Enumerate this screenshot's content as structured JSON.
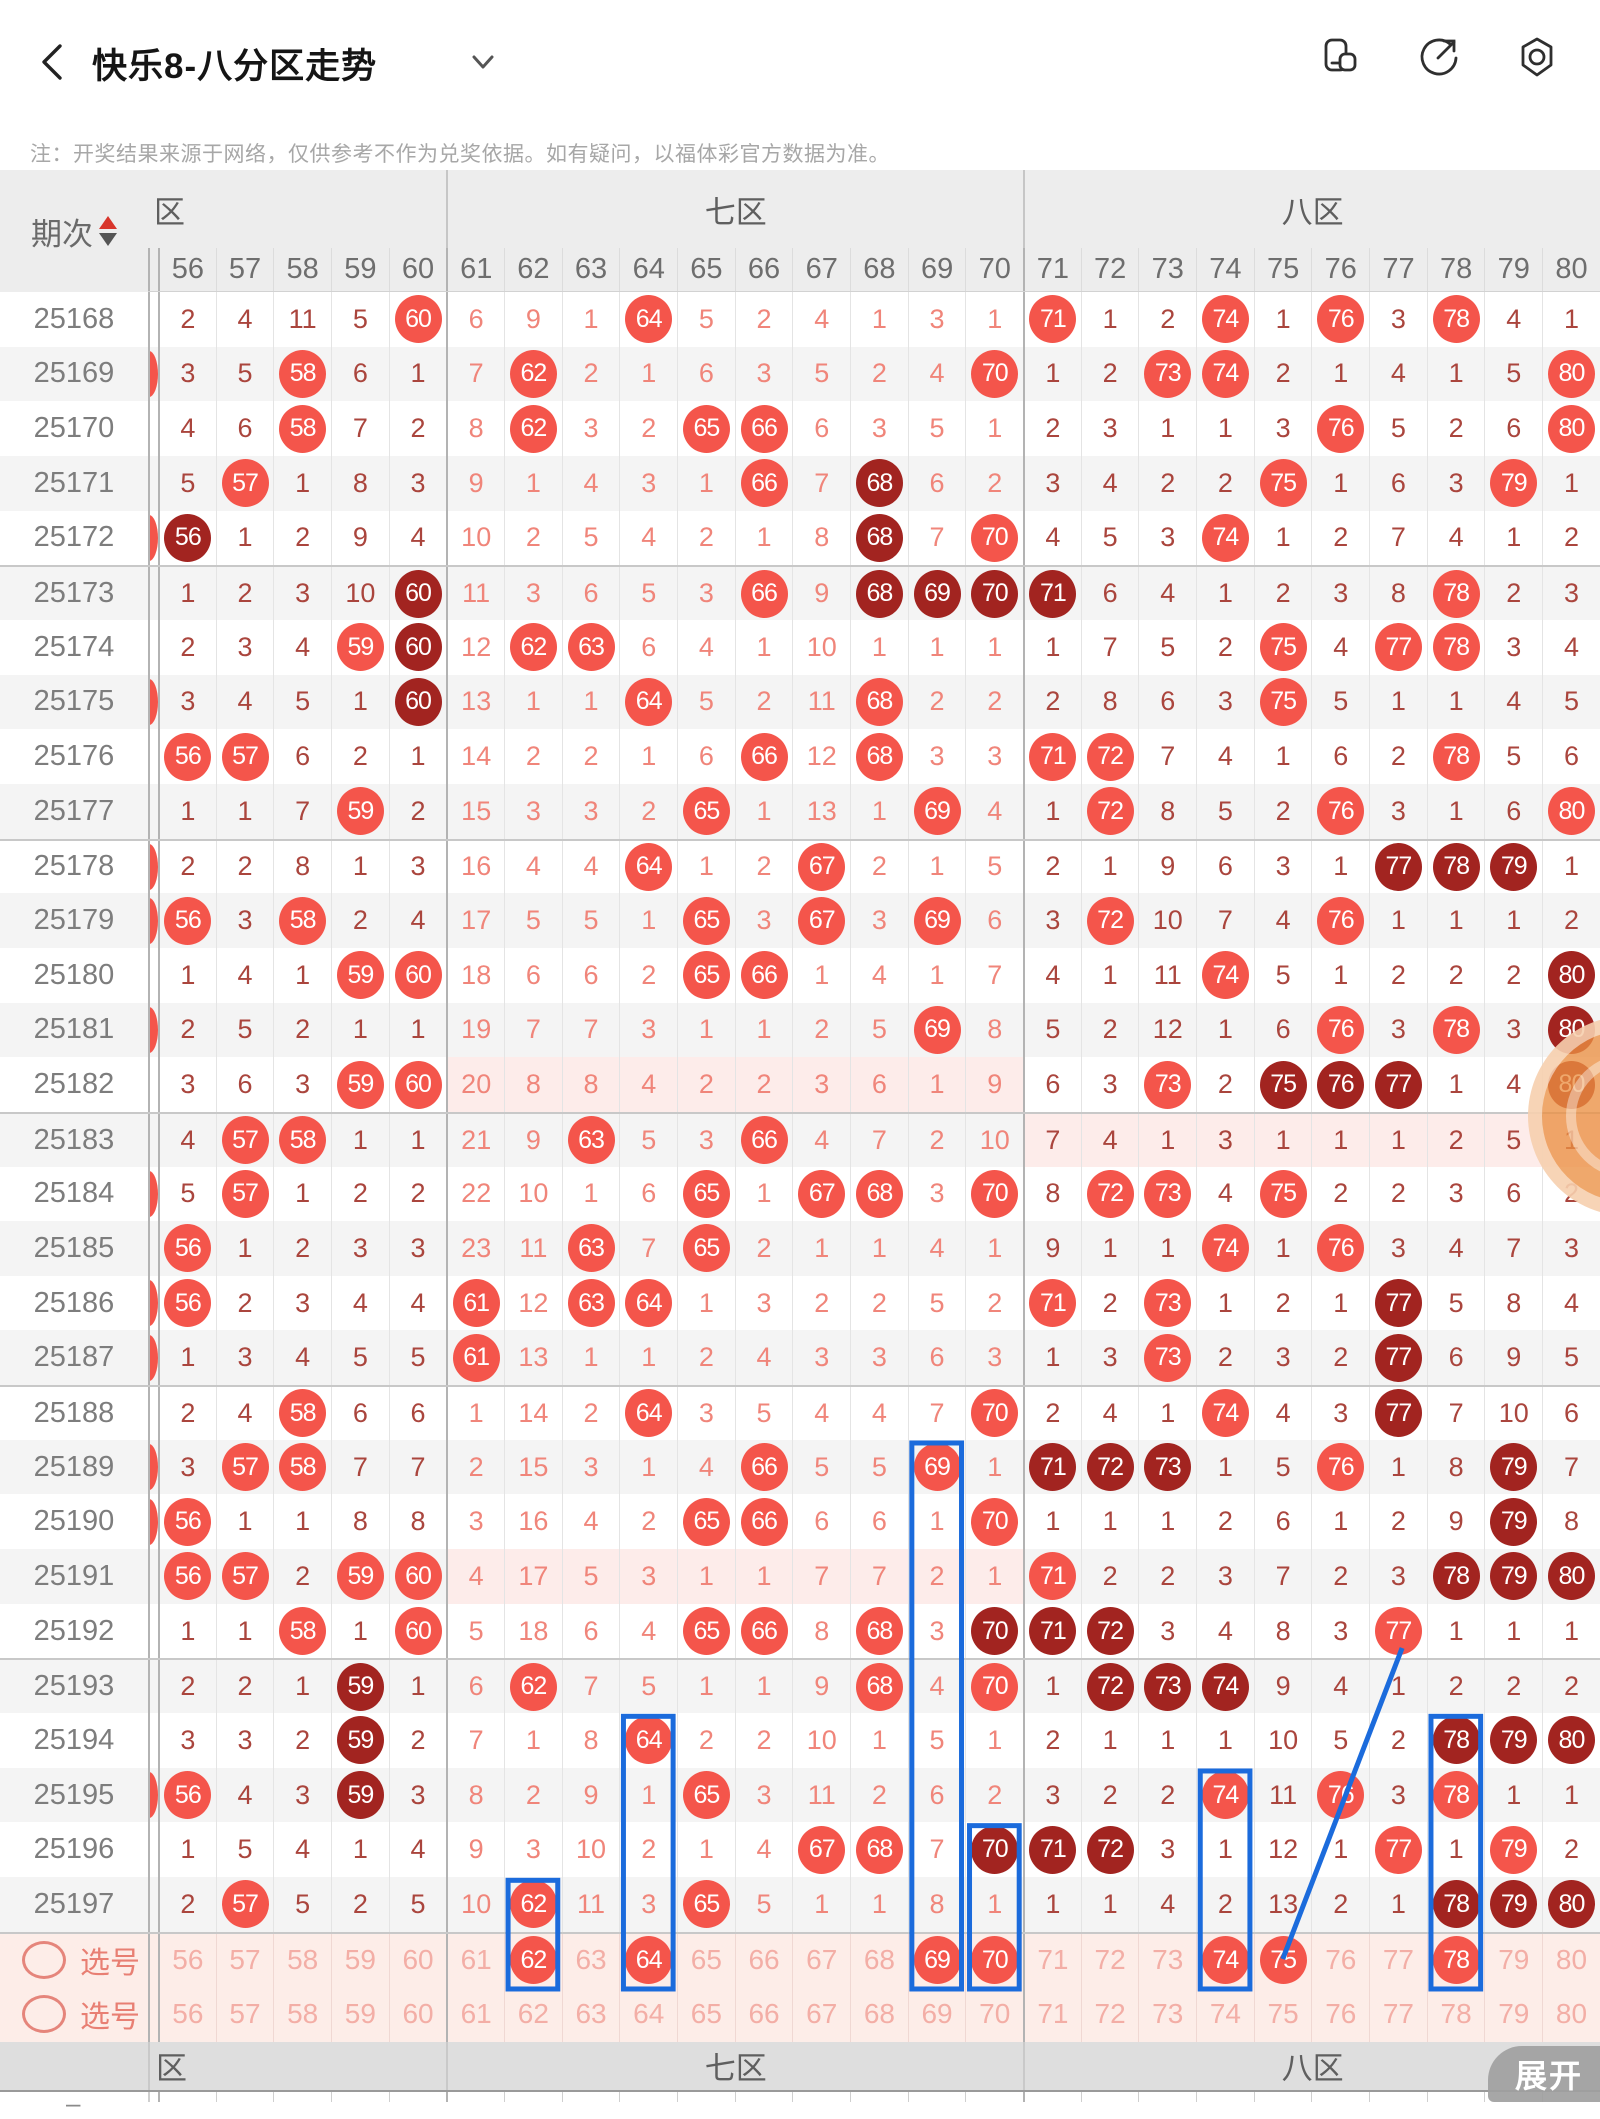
{
  "header": {
    "title": "快乐8-八分区走势",
    "back_icon": "chevron-left",
    "dropdown_icon": "chevron-down",
    "icons": [
      "floating-window",
      "share",
      "settings"
    ]
  },
  "note": "注：开奖结果来源于网络，仅供参考不作为兑奖依据。如有疑问，以福体彩官方数据为准。",
  "table": {
    "period_header": "期次",
    "columns": [
      "56",
      "57",
      "58",
      "59",
      "60",
      "61",
      "62",
      "63",
      "64",
      "65",
      "66",
      "67",
      "68",
      "69",
      "70",
      "71",
      "72",
      "73",
      "74",
      "75",
      "76",
      "77",
      "78",
      "79",
      "80"
    ],
    "zones": [
      {
        "label": "区",
        "span": 5
      },
      {
        "label": "七区",
        "span": 10
      },
      {
        "label": "八区",
        "span": 10
      }
    ],
    "footer_zones": [
      "区",
      "七区",
      "八区"
    ],
    "cell_legend": "plain string = miss count, B## = light red drawn ball, D## = dark red drawn ball",
    "rows": [
      {
        "period": "25168",
        "sliver": false,
        "pink": "",
        "cells": [
          "2",
          "4",
          "11",
          "5",
          "B60",
          "6",
          "9",
          "1",
          "B64",
          "5",
          "2",
          "4",
          "1",
          "3",
          "1",
          "B71",
          "1",
          "2",
          "B74",
          "1",
          "B76",
          "3",
          "B78",
          "4",
          "1"
        ]
      },
      {
        "period": "25169",
        "sliver": true,
        "pink": "",
        "cells": [
          "3",
          "5",
          "B58",
          "6",
          "1",
          "7",
          "B62",
          "2",
          "1",
          "6",
          "3",
          "5",
          "2",
          "4",
          "B70",
          "1",
          "2",
          "B73",
          "B74",
          "2",
          "1",
          "4",
          "1",
          "5",
          "B80"
        ]
      },
      {
        "period": "25170",
        "sliver": false,
        "pink": "",
        "cells": [
          "4",
          "6",
          "B58",
          "7",
          "2",
          "8",
          "B62",
          "3",
          "2",
          "B65",
          "B66",
          "6",
          "3",
          "5",
          "1",
          "2",
          "3",
          "1",
          "1",
          "3",
          "B76",
          "5",
          "2",
          "6",
          "B80"
        ]
      },
      {
        "period": "25171",
        "sliver": false,
        "pink": "",
        "cells": [
          "5",
          "B57",
          "1",
          "8",
          "3",
          "9",
          "1",
          "4",
          "3",
          "1",
          "B66",
          "7",
          "D68",
          "6",
          "2",
          "3",
          "4",
          "2",
          "2",
          "B75",
          "1",
          "6",
          "3",
          "B79",
          "1"
        ]
      },
      {
        "period": "25172",
        "sliver": true,
        "pink": "",
        "cells": [
          "D56",
          "1",
          "2",
          "9",
          "4",
          "10",
          "2",
          "5",
          "4",
          "2",
          "1",
          "8",
          "D68",
          "7",
          "B70",
          "4",
          "5",
          "3",
          "B74",
          "1",
          "2",
          "7",
          "4",
          "1",
          "2"
        ]
      },
      {
        "period": "25173",
        "sliver": false,
        "pink": "",
        "cells": [
          "1",
          "2",
          "3",
          "10",
          "D60",
          "11",
          "3",
          "6",
          "5",
          "3",
          "B66",
          "9",
          "D68",
          "D69",
          "D70",
          "D71",
          "6",
          "4",
          "1",
          "2",
          "3",
          "8",
          "B78",
          "2",
          "3"
        ]
      },
      {
        "period": "25174",
        "sliver": false,
        "pink": "",
        "cells": [
          "2",
          "3",
          "4",
          "B59",
          "D60",
          "12",
          "B62",
          "B63",
          "6",
          "4",
          "1",
          "10",
          "1",
          "1",
          "1",
          "1",
          "7",
          "5",
          "2",
          "B75",
          "4",
          "B77",
          "B78",
          "3",
          "4"
        ]
      },
      {
        "period": "25175",
        "sliver": true,
        "pink": "",
        "cells": [
          "3",
          "4",
          "5",
          "1",
          "D60",
          "13",
          "1",
          "1",
          "B64",
          "5",
          "2",
          "11",
          "B68",
          "2",
          "2",
          "2",
          "8",
          "6",
          "3",
          "B75",
          "5",
          "1",
          "1",
          "4",
          "5"
        ]
      },
      {
        "period": "25176",
        "sliver": false,
        "pink": "",
        "cells": [
          "B56",
          "B57",
          "6",
          "2",
          "1",
          "14",
          "2",
          "2",
          "1",
          "6",
          "B66",
          "12",
          "B68",
          "3",
          "3",
          "B71",
          "B72",
          "7",
          "4",
          "1",
          "6",
          "2",
          "B78",
          "5",
          "6"
        ]
      },
      {
        "period": "25177",
        "sliver": false,
        "pink": "",
        "cells": [
          "1",
          "1",
          "7",
          "B59",
          "2",
          "15",
          "3",
          "3",
          "2",
          "B65",
          "1",
          "13",
          "1",
          "B69",
          "4",
          "1",
          "B72",
          "8",
          "5",
          "2",
          "B76",
          "3",
          "1",
          "6",
          "B80"
        ]
      },
      {
        "period": "25178",
        "sliver": true,
        "pink": "",
        "cells": [
          "2",
          "2",
          "8",
          "1",
          "3",
          "16",
          "4",
          "4",
          "B64",
          "1",
          "2",
          "B67",
          "2",
          "1",
          "5",
          "2",
          "1",
          "9",
          "6",
          "3",
          "1",
          "D77",
          "D78",
          "D79",
          "1"
        ]
      },
      {
        "period": "25179",
        "sliver": true,
        "pink": "",
        "cells": [
          "B56",
          "3",
          "B58",
          "2",
          "4",
          "17",
          "5",
          "5",
          "1",
          "B65",
          "3",
          "B67",
          "3",
          "B69",
          "6",
          "3",
          "B72",
          "10",
          "7",
          "4",
          "B76",
          "1",
          "1",
          "1",
          "2"
        ]
      },
      {
        "period": "25180",
        "sliver": false,
        "pink": "",
        "cells": [
          "1",
          "4",
          "1",
          "B59",
          "B60",
          "18",
          "6",
          "6",
          "2",
          "B65",
          "B66",
          "1",
          "4",
          "1",
          "7",
          "4",
          "1",
          "11",
          "B74",
          "5",
          "1",
          "2",
          "2",
          "2",
          "D80"
        ]
      },
      {
        "period": "25181",
        "sliver": true,
        "pink": "",
        "cells": [
          "2",
          "5",
          "2",
          "1",
          "1",
          "19",
          "7",
          "7",
          "3",
          "1",
          "1",
          "2",
          "5",
          "B69",
          "8",
          "5",
          "2",
          "12",
          "1",
          "6",
          "B76",
          "3",
          "B78",
          "3",
          "D80"
        ]
      },
      {
        "period": "25182",
        "sliver": false,
        "pink": "seven",
        "cells": [
          "3",
          "6",
          "3",
          "B59",
          "B60",
          "20",
          "8",
          "8",
          "4",
          "2",
          "2",
          "3",
          "6",
          "1",
          "9",
          "6",
          "3",
          "B73",
          "2",
          "D75",
          "D76",
          "D77",
          "1",
          "4",
          "D80"
        ]
      },
      {
        "period": "25183",
        "sliver": false,
        "pink": "eight",
        "cells": [
          "4",
          "B57",
          "B58",
          "1",
          "1",
          "21",
          "9",
          "B63",
          "5",
          "3",
          "B66",
          "4",
          "7",
          "2",
          "10",
          "7",
          "4",
          "1",
          "3",
          "1",
          "1",
          "1",
          "2",
          "5",
          "1"
        ]
      },
      {
        "period": "25184",
        "sliver": true,
        "pink": "",
        "cells": [
          "5",
          "B57",
          "1",
          "2",
          "2",
          "22",
          "10",
          "1",
          "6",
          "B65",
          "1",
          "B67",
          "B68",
          "3",
          "B70",
          "8",
          "B72",
          "B73",
          "4",
          "B75",
          "2",
          "2",
          "3",
          "6",
          "2"
        ]
      },
      {
        "period": "25185",
        "sliver": false,
        "pink": "",
        "cells": [
          "B56",
          "1",
          "2",
          "3",
          "3",
          "23",
          "11",
          "B63",
          "7",
          "B65",
          "2",
          "1",
          "1",
          "4",
          "1",
          "9",
          "1",
          "1",
          "B74",
          "1",
          "B76",
          "3",
          "4",
          "7",
          "3"
        ]
      },
      {
        "period": "25186",
        "sliver": true,
        "pink": "",
        "cells": [
          "B56",
          "2",
          "3",
          "4",
          "4",
          "B61",
          "12",
          "B63",
          "B64",
          "1",
          "3",
          "2",
          "2",
          "5",
          "2",
          "B71",
          "2",
          "B73",
          "1",
          "2",
          "1",
          "D77",
          "5",
          "8",
          "4"
        ]
      },
      {
        "period": "25187",
        "sliver": true,
        "pink": "",
        "cells": [
          "1",
          "3",
          "4",
          "5",
          "5",
          "B61",
          "13",
          "1",
          "1",
          "2",
          "4",
          "3",
          "3",
          "6",
          "3",
          "1",
          "3",
          "B73",
          "2",
          "3",
          "2",
          "D77",
          "6",
          "9",
          "5"
        ]
      },
      {
        "period": "25188",
        "sliver": false,
        "pink": "",
        "cells": [
          "2",
          "4",
          "B58",
          "6",
          "6",
          "1",
          "14",
          "2",
          "B64",
          "3",
          "5",
          "4",
          "4",
          "7",
          "B70",
          "2",
          "4",
          "1",
          "B74",
          "4",
          "3",
          "D77",
          "7",
          "10",
          "6"
        ]
      },
      {
        "period": "25189",
        "sliver": true,
        "pink": "",
        "cells": [
          "3",
          "B57",
          "B58",
          "7",
          "7",
          "2",
          "15",
          "3",
          "1",
          "4",
          "B66",
          "5",
          "5",
          "B69",
          "1",
          "D71",
          "D72",
          "D73",
          "1",
          "5",
          "B76",
          "1",
          "8",
          "D79",
          "7"
        ]
      },
      {
        "period": "25190",
        "sliver": true,
        "pink": "",
        "cells": [
          "B56",
          "1",
          "1",
          "8",
          "8",
          "3",
          "16",
          "4",
          "2",
          "B65",
          "B66",
          "6",
          "6",
          "1",
          "B70",
          "1",
          "1",
          "1",
          "2",
          "6",
          "1",
          "2",
          "9",
          "D79",
          "8"
        ]
      },
      {
        "period": "25191",
        "sliver": false,
        "pink": "seven",
        "cells": [
          "B56",
          "B57",
          "2",
          "B59",
          "B60",
          "4",
          "17",
          "5",
          "3",
          "1",
          "1",
          "7",
          "7",
          "2",
          "1",
          "B71",
          "2",
          "2",
          "3",
          "7",
          "2",
          "3",
          "D78",
          "D79",
          "D80"
        ]
      },
      {
        "period": "25192",
        "sliver": false,
        "pink": "",
        "cells": [
          "1",
          "1",
          "B58",
          "1",
          "B60",
          "5",
          "18",
          "6",
          "4",
          "B65",
          "B66",
          "8",
          "B68",
          "3",
          "D70",
          "D71",
          "D72",
          "3",
          "4",
          "8",
          "3",
          "B77",
          "1",
          "1",
          "1"
        ]
      },
      {
        "period": "25193",
        "sliver": false,
        "pink": "",
        "cells": [
          "2",
          "2",
          "1",
          "D59",
          "1",
          "6",
          "B62",
          "7",
          "5",
          "1",
          "1",
          "9",
          "B68",
          "4",
          "B70",
          "1",
          "D72",
          "D73",
          "D74",
          "9",
          "4",
          "1",
          "2",
          "2",
          "2"
        ]
      },
      {
        "period": "25194",
        "sliver": false,
        "pink": "",
        "cells": [
          "3",
          "3",
          "2",
          "D59",
          "2",
          "7",
          "1",
          "8",
          "B64",
          "2",
          "2",
          "10",
          "1",
          "5",
          "1",
          "2",
          "1",
          "1",
          "1",
          "10",
          "5",
          "2",
          "D78",
          "D79",
          "D80"
        ]
      },
      {
        "period": "25195",
        "sliver": true,
        "pink": "",
        "cells": [
          "B56",
          "4",
          "3",
          "D59",
          "3",
          "8",
          "2",
          "9",
          "1",
          "B65",
          "3",
          "11",
          "2",
          "6",
          "2",
          "3",
          "2",
          "2",
          "B74",
          "11",
          "B76",
          "3",
          "B78",
          "1",
          "1"
        ]
      },
      {
        "period": "25196",
        "sliver": false,
        "pink": "",
        "cells": [
          "1",
          "5",
          "4",
          "1",
          "4",
          "9",
          "3",
          "10",
          "2",
          "1",
          "4",
          "B67",
          "B68",
          "7",
          "D70",
          "D71",
          "D72",
          "3",
          "1",
          "12",
          "1",
          "B77",
          "1",
          "B79",
          "2"
        ]
      },
      {
        "period": "25197",
        "sliver": false,
        "pink": "",
        "cells": [
          "2",
          "B57",
          "5",
          "2",
          "5",
          "10",
          "B62",
          "11",
          "3",
          "B65",
          "5",
          "1",
          "1",
          "8",
          "1",
          "1",
          "1",
          "4",
          "2",
          "13",
          "2",
          "1",
          "D78",
          "D79",
          "D80"
        ]
      }
    ],
    "selection_rows": [
      {
        "label": "选号",
        "cells": [
          "56",
          "57",
          "58",
          "59",
          "60",
          "61",
          "B62",
          "63",
          "B64",
          "65",
          "66",
          "67",
          "68",
          "B69",
          "B70",
          "71",
          "72",
          "73",
          "B74",
          "B75",
          "76",
          "77",
          "B78",
          "79",
          "80"
        ]
      },
      {
        "label": "选号",
        "cells": [
          "56",
          "57",
          "58",
          "59",
          "60",
          "61",
          "62",
          "63",
          "64",
          "65",
          "66",
          "67",
          "68",
          "69",
          "70",
          "71",
          "72",
          "73",
          "74",
          "75",
          "76",
          "77",
          "78",
          "79",
          "80"
        ]
      }
    ],
    "expand_label": "展开",
    "cut_row_dash": "–"
  },
  "annotations": {
    "boxes": [
      {
        "col": 62,
        "start_period": "25197"
      },
      {
        "col": 64,
        "start_period": "25194"
      },
      {
        "col": 69,
        "start_period": "25189"
      },
      {
        "col": 70,
        "start_period": "25196"
      },
      {
        "col": 74,
        "start_period": "25195"
      },
      {
        "col": 78,
        "start_period": "25194"
      }
    ],
    "line": {
      "from_col": 75,
      "from_row": "selection",
      "to_col": 77,
      "to_period": "25192"
    }
  },
  "colors": {
    "ball_light": "#f4554b",
    "ball_dark": "#a22420",
    "miss_text_dark_zone": "#aa453d",
    "miss_text_seven_zone": "#f0857a",
    "annotation_blue": "#1b6bdc",
    "pink_highlight": "#fdecea",
    "selection_bg": "#fdede8",
    "selection_text": "#f3aea6",
    "watermark_orange": "#eb8f42"
  }
}
